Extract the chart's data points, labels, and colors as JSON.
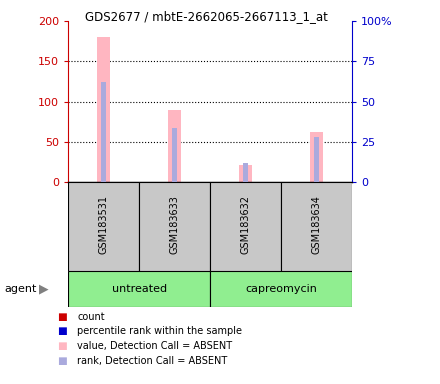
{
  "title": "GDS2677 / mbtE-2662065-2667113_1_at",
  "samples": [
    "GSM183531",
    "GSM183633",
    "GSM183632",
    "GSM183634"
  ],
  "groups": [
    "untreated",
    "untreated",
    "capreomycin",
    "capreomycin"
  ],
  "bar_color_absent": "#FFB6C1",
  "rank_color_absent": "#AAAADD",
  "values": [
    180,
    90,
    22,
    62
  ],
  "ranks": [
    62,
    34,
    12,
    28
  ],
  "left_ylim": [
    0,
    200
  ],
  "right_ylim": [
    0,
    100
  ],
  "left_yticks": [
    0,
    50,
    100,
    150,
    200
  ],
  "right_yticks": [
    0,
    25,
    50,
    75,
    100
  ],
  "left_yticklabels": [
    "0",
    "50",
    "100",
    "150",
    "200"
  ],
  "right_yticklabels": [
    "0",
    "25",
    "50",
    "75",
    "100%"
  ],
  "left_tick_color": "#CC0000",
  "right_tick_color": "#0000CC",
  "agent_label": "agent",
  "legend_items": [
    {
      "label": "count",
      "color": "#CC0000"
    },
    {
      "label": "percentile rank within the sample",
      "color": "#0000CC"
    },
    {
      "label": "value, Detection Call = ABSENT",
      "color": "#FFB6C1"
    },
    {
      "label": "rank, Detection Call = ABSENT",
      "color": "#AAAADD"
    }
  ],
  "sample_bg": "#C8C8C8",
  "group_colors": [
    "#90EE90",
    "#90EE90"
  ],
  "group_ranges": [
    [
      0,
      1
    ],
    [
      2,
      3
    ]
  ],
  "group_label_names": [
    "untreated",
    "capreomycin"
  ]
}
